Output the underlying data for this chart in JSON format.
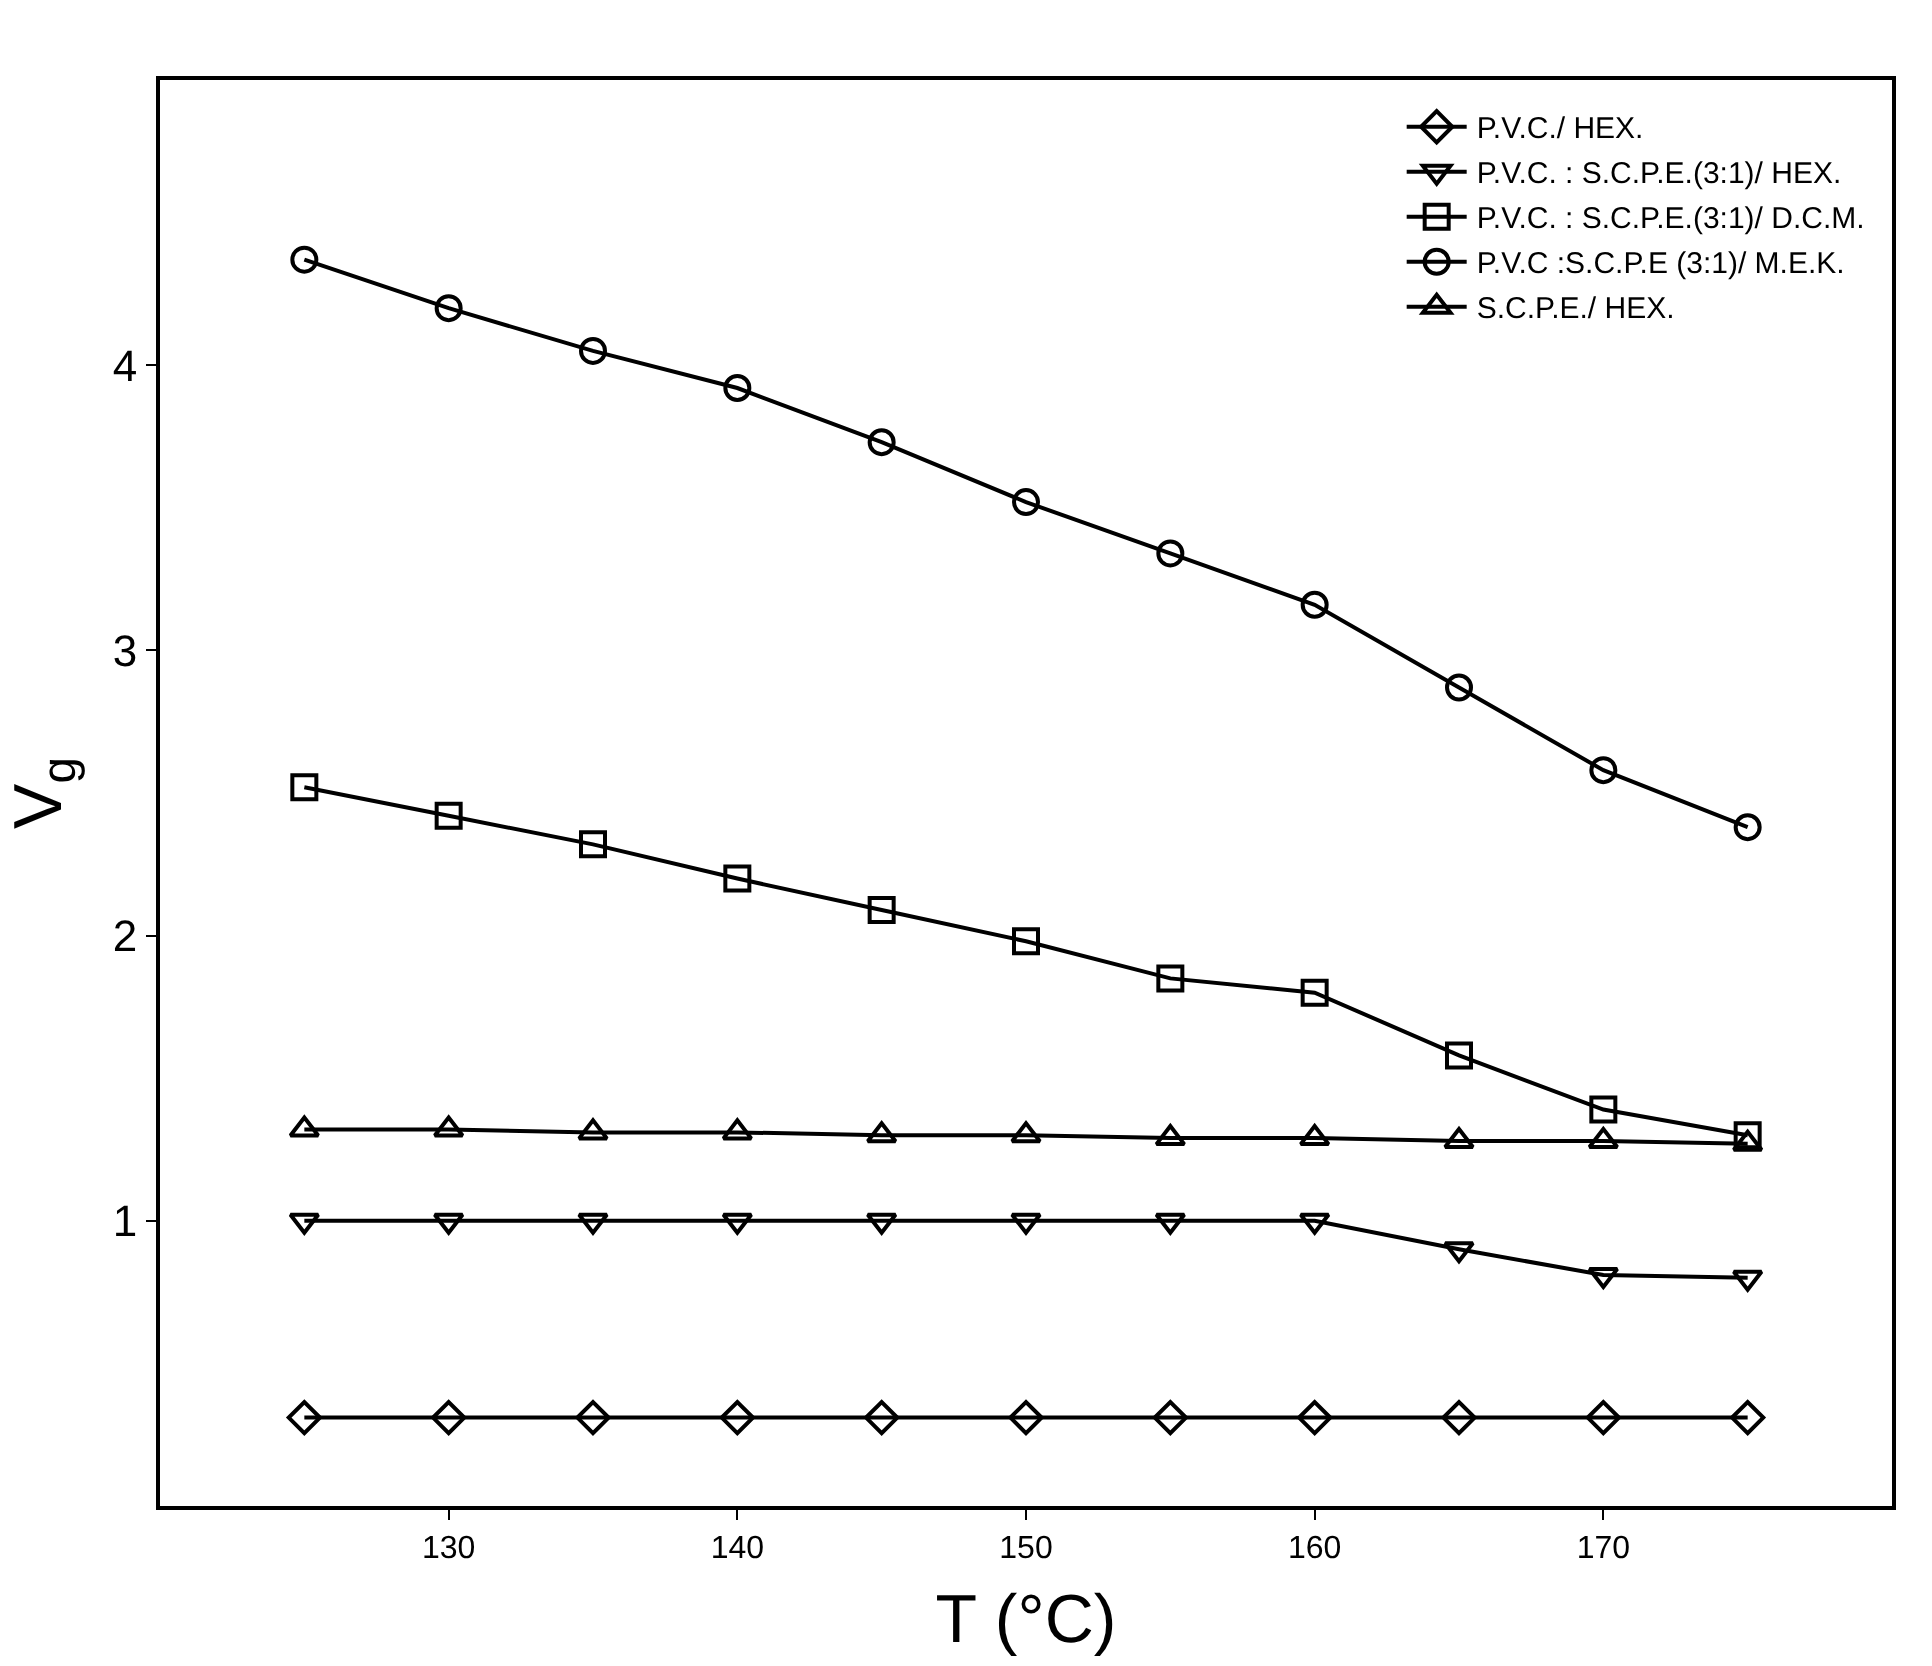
{
  "chart_data": {
    "type": "line",
    "xlabel": "T (°C)",
    "ylabel": "V$_{g}$",
    "x": [
      125,
      130,
      135,
      140,
      145,
      150,
      155,
      160,
      165,
      170,
      175
    ],
    "xlim": [
      120,
      180
    ],
    "xticks": [
      130,
      140,
      150,
      160,
      170
    ],
    "ylim": [
      0,
      5
    ],
    "yticks": [
      1,
      2,
      3,
      4
    ],
    "grid": false,
    "legend": "top right",
    "line_style": "solid",
    "series": [
      {
        "name": "P.V.C./ HEX.",
        "color": "#000000",
        "marker": "diamond",
        "values": [
          0.31,
          0.31,
          0.31,
          0.31,
          0.31,
          0.31,
          0.31,
          0.31,
          0.31,
          0.31,
          0.31
        ]
      },
      {
        "name": "P.V.C. : S.C.P.E.(3:1)/ HEX.",
        "color": "#000000",
        "marker": "triangle-down",
        "values": [
          1.0,
          1.0,
          1.0,
          1.0,
          1.0,
          1.0,
          1.0,
          1.0,
          0.9,
          0.81,
          0.8
        ]
      },
      {
        "name": "P.V.C. : S.C.P.E.(3:1)/ D.C.M.",
        "color": "#000000",
        "marker": "square",
        "values": [
          2.52,
          2.42,
          2.32,
          2.2,
          2.09,
          1.98,
          1.85,
          1.8,
          1.58,
          1.39,
          1.3
        ]
      },
      {
        "name": "P.V.C :S.C.P.E (3:1)/ M.E.K.",
        "color": "#000000",
        "marker": "circle",
        "values": [
          4.37,
          4.2,
          4.05,
          3.92,
          3.73,
          3.52,
          3.34,
          3.16,
          2.87,
          2.58,
          2.38
        ]
      },
      {
        "name": "S.C.P.E./ HEX.",
        "color": "#000000",
        "marker": "triangle",
        "values": [
          1.32,
          1.32,
          1.31,
          1.31,
          1.3,
          1.3,
          1.29,
          1.29,
          1.28,
          1.28,
          1.27
        ]
      }
    ]
  }
}
